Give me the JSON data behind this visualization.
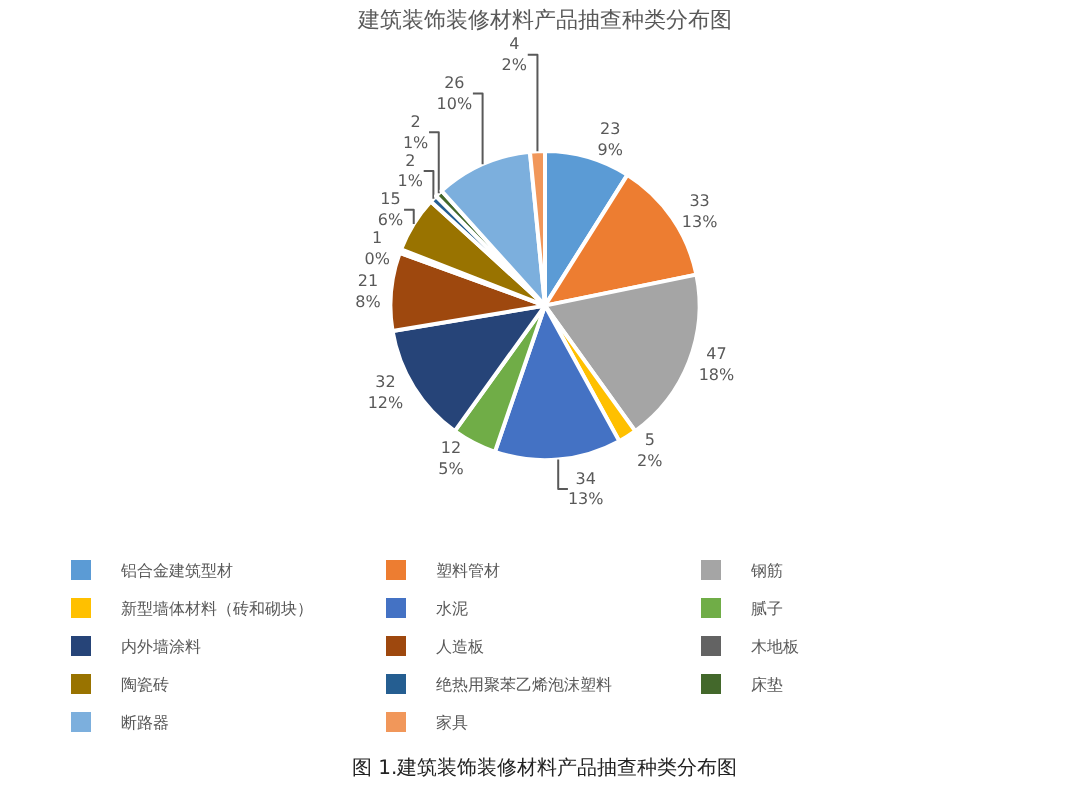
{
  "chart_data": {
    "type": "pie",
    "title": "建筑装饰装修材料产品抽查种类分布图",
    "categories": [
      "铝合金建筑型材",
      "塑料管材",
      "钢筋",
      "新型墙体材料（砖和砌块）",
      "水泥",
      "腻子",
      "内外墙涂料",
      "人造板",
      "木地板",
      "陶瓷砖",
      "绝热用聚苯乙烯泡沫塑料",
      "床垫",
      "断路器",
      "家具"
    ],
    "values": [
      23,
      33,
      47,
      5,
      34,
      12,
      32,
      21,
      1,
      15,
      2,
      2,
      26,
      4
    ],
    "value_labels": [
      "23\n9%",
      "33\n13%",
      "47\n18%",
      "5\n2%",
      "34\n13%",
      "12\n5%",
      "32\n12%",
      "21\n8%",
      "1\n0%",
      "15\n6%",
      "2\n1%",
      "2\n1%",
      "26\n10%",
      "4\n2%"
    ],
    "colors": [
      "#5b9bd5",
      "#ed7d31",
      "#a5a5a5",
      "#ffc000",
      "#4472c4",
      "#70ad47",
      "#264478",
      "#9e480e",
      "#636363",
      "#997300",
      "#255e91",
      "#43682b",
      "#7cafdd",
      "#f1975a"
    ],
    "legend": "bottom",
    "annotations": [
      "图 1.建筑装饰装修材料产品抽查种类分布图"
    ]
  }
}
